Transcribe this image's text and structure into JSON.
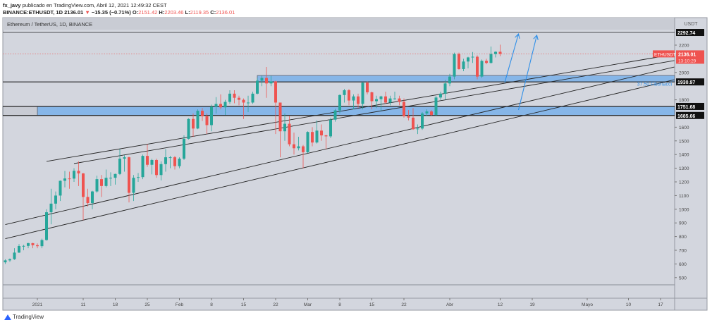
{
  "header": {
    "author": "fx_javy",
    "published": "publicado en TradingView.com, Abril 12, 2021 12:49:32 CEST",
    "symbol": "BINANCE:ETHUSDT, 1D",
    "last": "2136.01",
    "change_arrow": "▼",
    "change": "−15.35 (−0.71%)",
    "o_label": "O:",
    "o": "2151.42",
    "h_label": "H:",
    "h": "2203.46",
    "l_label": "L:",
    "l": "2119.35",
    "c_label": "C:",
    "c": "2136.01"
  },
  "footer": {
    "logo_text": "TradingView"
  },
  "colors": {
    "up": "#26a69a",
    "down": "#ef5350",
    "zone": "#86b6e8",
    "background": "#d3d6de",
    "arrow": "#2f8fe8"
  },
  "chart_data": {
    "type": "candlestick",
    "title": "Ethereum / TetherUS, 1D, BINANCE",
    "currency": "USDT",
    "ylim": [
      420,
      2330
    ],
    "yticks": [
      2200,
      2100,
      2000,
      1900,
      1800,
      1700,
      1600,
      1500,
      1400,
      1300,
      1200,
      1100,
      1000,
      900,
      800,
      700,
      600,
      500
    ],
    "xticks": [
      {
        "label": "2021",
        "date": "2021-01-01"
      },
      {
        "label": "11",
        "date": "2021-01-11"
      },
      {
        "label": "18",
        "date": "2021-01-18"
      },
      {
        "label": "25",
        "date": "2021-01-25"
      },
      {
        "label": "Feb",
        "date": "2021-02-01"
      },
      {
        "label": "8",
        "date": "2021-02-08"
      },
      {
        "label": "15",
        "date": "2021-02-15"
      },
      {
        "label": "22",
        "date": "2021-02-22"
      },
      {
        "label": "Mar",
        "date": "2021-03-01"
      },
      {
        "label": "8",
        "date": "2021-03-08"
      },
      {
        "label": "15",
        "date": "2021-03-15"
      },
      {
        "label": "22",
        "date": "2021-03-22"
      },
      {
        "label": "Abr",
        "date": "2021-04-01"
      },
      {
        "label": "12",
        "date": "2021-04-12"
      },
      {
        "label": "19",
        "date": "2021-04-19"
      },
      {
        "label": "Mayo",
        "date": "2021-05-01"
      },
      {
        "label": "10",
        "date": "2021-05-10"
      },
      {
        "label": "17",
        "date": "2021-05-17"
      }
    ],
    "columns": [
      "date",
      "open",
      "high",
      "low",
      "close"
    ],
    "candles": [
      [
        "2020-12-25",
        612,
        635,
        600,
        626
      ],
      [
        "2020-12-26",
        626,
        640,
        615,
        635
      ],
      [
        "2020-12-27",
        635,
        715,
        630,
        683
      ],
      [
        "2020-12-28",
        683,
        745,
        680,
        731
      ],
      [
        "2020-12-29",
        731,
        740,
        700,
        732
      ],
      [
        "2020-12-30",
        732,
        755,
        715,
        752
      ],
      [
        "2020-12-31",
        752,
        755,
        715,
        737
      ],
      [
        "2021-01-01",
        737,
        750,
        715,
        730
      ],
      [
        "2021-01-02",
        730,
        785,
        715,
        775
      ],
      [
        "2021-01-03",
        775,
        1000,
        770,
        978
      ],
      [
        "2021-01-04",
        978,
        1150,
        890,
        1041
      ],
      [
        "2021-01-05",
        1041,
        1130,
        1000,
        1100
      ],
      [
        "2021-01-06",
        1100,
        1210,
        1060,
        1208
      ],
      [
        "2021-01-07",
        1208,
        1280,
        1160,
        1225
      ],
      [
        "2021-01-08",
        1225,
        1275,
        1150,
        1224
      ],
      [
        "2021-01-09",
        1224,
        1300,
        1200,
        1281
      ],
      [
        "2021-01-10",
        1281,
        1350,
        1170,
        1262
      ],
      [
        "2021-01-11",
        1262,
        1265,
        920,
        1090
      ],
      [
        "2021-01-12",
        1090,
        1150,
        1020,
        1045
      ],
      [
        "2021-01-13",
        1045,
        1135,
        1000,
        1130
      ],
      [
        "2021-01-14",
        1130,
        1245,
        1120,
        1220
      ],
      [
        "2021-01-15",
        1220,
        1250,
        1090,
        1170
      ],
      [
        "2021-01-16",
        1170,
        1290,
        1160,
        1230
      ],
      [
        "2021-01-17",
        1230,
        1270,
        1170,
        1230
      ],
      [
        "2021-01-18",
        1230,
        1260,
        1180,
        1258
      ],
      [
        "2021-01-19",
        1258,
        1440,
        1250,
        1370
      ],
      [
        "2021-01-20",
        1370,
        1395,
        1275,
        1380
      ],
      [
        "2021-01-21",
        1380,
        1385,
        1050,
        1120
      ],
      [
        "2021-01-22",
        1120,
        1250,
        1060,
        1230
      ],
      [
        "2021-01-23",
        1230,
        1265,
        1200,
        1235
      ],
      [
        "2021-01-24",
        1235,
        1400,
        1220,
        1390
      ],
      [
        "2021-01-25",
        1390,
        1475,
        1310,
        1325
      ],
      [
        "2021-01-26",
        1325,
        1370,
        1255,
        1360
      ],
      [
        "2021-01-27",
        1360,
        1370,
        1230,
        1250
      ],
      [
        "2021-01-28",
        1250,
        1350,
        1210,
        1330
      ],
      [
        "2021-01-29",
        1330,
        1440,
        1275,
        1380
      ],
      [
        "2021-01-30",
        1380,
        1390,
        1300,
        1380
      ],
      [
        "2021-01-31",
        1380,
        1390,
        1290,
        1315
      ],
      [
        "2021-02-01",
        1315,
        1380,
        1300,
        1370
      ],
      [
        "2021-02-02",
        1370,
        1540,
        1360,
        1515
      ],
      [
        "2021-02-03",
        1515,
        1665,
        1510,
        1660
      ],
      [
        "2021-02-04",
        1660,
        1700,
        1530,
        1590
      ],
      [
        "2021-02-05",
        1590,
        1730,
        1585,
        1720
      ],
      [
        "2021-02-06",
        1720,
        1740,
        1645,
        1680
      ],
      [
        "2021-02-07",
        1680,
        1700,
        1550,
        1615
      ],
      [
        "2021-02-08",
        1615,
        1765,
        1570,
        1750
      ],
      [
        "2021-02-09",
        1750,
        1820,
        1700,
        1770
      ],
      [
        "2021-02-10",
        1770,
        1840,
        1730,
        1745
      ],
      [
        "2021-02-11",
        1745,
        1800,
        1690,
        1785
      ],
      [
        "2021-02-12",
        1785,
        1870,
        1770,
        1845
      ],
      [
        "2021-02-13",
        1845,
        1870,
        1775,
        1815
      ],
      [
        "2021-02-14",
        1815,
        1830,
        1760,
        1800
      ],
      [
        "2021-02-15",
        1800,
        1810,
        1660,
        1780
      ],
      [
        "2021-02-16",
        1780,
        1830,
        1710,
        1780
      ],
      [
        "2021-02-17",
        1780,
        1860,
        1770,
        1845
      ],
      [
        "2021-02-18",
        1845,
        1960,
        1840,
        1940
      ],
      [
        "2021-02-19",
        1940,
        1975,
        1900,
        1960
      ],
      [
        "2021-02-20",
        1960,
        2040,
        1815,
        1920
      ],
      [
        "2021-02-21",
        1920,
        1975,
        1900,
        1935
      ],
      [
        "2021-02-22",
        1935,
        1940,
        1550,
        1780
      ],
      [
        "2021-02-23",
        1780,
        1780,
        1380,
        1570
      ],
      [
        "2021-02-24",
        1570,
        1700,
        1500,
        1625
      ],
      [
        "2021-02-25",
        1625,
        1680,
        1460,
        1475
      ],
      [
        "2021-02-26",
        1475,
        1560,
        1400,
        1446
      ],
      [
        "2021-02-27",
        1446,
        1530,
        1430,
        1460
      ],
      [
        "2021-02-28",
        1460,
        1470,
        1300,
        1417
      ],
      [
        "2021-03-01",
        1417,
        1570,
        1410,
        1565
      ],
      [
        "2021-03-02",
        1565,
        1600,
        1460,
        1488
      ],
      [
        "2021-03-03",
        1488,
        1650,
        1480,
        1575
      ],
      [
        "2021-03-04",
        1575,
        1620,
        1500,
        1540
      ],
      [
        "2021-03-05",
        1540,
        1545,
        1440,
        1533
      ],
      [
        "2021-03-06",
        1533,
        1670,
        1520,
        1655
      ],
      [
        "2021-03-07",
        1655,
        1735,
        1640,
        1723
      ],
      [
        "2021-03-08",
        1723,
        1840,
        1700,
        1835
      ],
      [
        "2021-03-09",
        1835,
        1880,
        1780,
        1870
      ],
      [
        "2021-03-10",
        1870,
        1880,
        1760,
        1795
      ],
      [
        "2021-03-11",
        1795,
        1840,
        1730,
        1825
      ],
      [
        "2021-03-12",
        1825,
        1845,
        1740,
        1770
      ],
      [
        "2021-03-13",
        1770,
        1930,
        1730,
        1925
      ],
      [
        "2021-03-14",
        1925,
        1935,
        1840,
        1855
      ],
      [
        "2021-03-15",
        1855,
        1860,
        1730,
        1790
      ],
      [
        "2021-03-16",
        1790,
        1830,
        1740,
        1805
      ],
      [
        "2021-03-17",
        1805,
        1830,
        1720,
        1825
      ],
      [
        "2021-03-18",
        1825,
        1860,
        1770,
        1780
      ],
      [
        "2021-03-19",
        1780,
        1830,
        1760,
        1810
      ],
      [
        "2021-03-20",
        1810,
        1860,
        1800,
        1810
      ],
      [
        "2021-03-21",
        1810,
        1830,
        1760,
        1785
      ],
      [
        "2021-03-22",
        1785,
        1810,
        1670,
        1680
      ],
      [
        "2021-03-23",
        1680,
        1725,
        1650,
        1670
      ],
      [
        "2021-03-24",
        1670,
        1740,
        1580,
        1585
      ],
      [
        "2021-03-25",
        1585,
        1620,
        1550,
        1590
      ],
      [
        "2021-03-26",
        1590,
        1710,
        1580,
        1700
      ],
      [
        "2021-03-27",
        1700,
        1730,
        1680,
        1715
      ],
      [
        "2021-03-28",
        1715,
        1725,
        1680,
        1690
      ],
      [
        "2021-03-29",
        1690,
        1830,
        1680,
        1817
      ],
      [
        "2021-03-30",
        1817,
        1860,
        1800,
        1845
      ],
      [
        "2021-03-31",
        1845,
        1945,
        1800,
        1920
      ],
      [
        "2021-04-01",
        1920,
        1990,
        1900,
        1970
      ],
      [
        "2021-04-02",
        1970,
        2145,
        1950,
        2135
      ],
      [
        "2021-04-03",
        2135,
        2145,
        2020,
        2025
      ],
      [
        "2021-04-04",
        2025,
        2100,
        2010,
        2080
      ],
      [
        "2021-04-05",
        2080,
        2115,
        2030,
        2110
      ],
      [
        "2021-04-06",
        2110,
        2150,
        2070,
        2115
      ],
      [
        "2021-04-07",
        2115,
        2125,
        1950,
        1970
      ],
      [
        "2021-04-08",
        1970,
        2095,
        1960,
        2085
      ],
      [
        "2021-04-09",
        2085,
        2100,
        2060,
        2070
      ],
      [
        "2021-04-10",
        2070,
        2190,
        2065,
        2135
      ],
      [
        "2021-04-11",
        2135,
        2155,
        2110,
        2151
      ],
      [
        "2021-04-12",
        2151.42,
        2203.46,
        2119.35,
        2136.01
      ]
    ],
    "price_label": {
      "symbol": "ETHUSDT",
      "price": "2136.01",
      "countdown": "13:10:29",
      "value": 2136.01
    },
    "levels": [
      {
        "label": "2292.74",
        "value": 2292.74
      },
      {
        "label": "1930.97",
        "value": 1930.97
      },
      {
        "label": "1751.68",
        "value": 1751.68
      },
      {
        "label": "1685.66",
        "value": 1685.66
      }
    ],
    "zones": [
      {
        "from": "2021-02-18",
        "top": 1978,
        "bottom": 1930.97
      },
      {
        "from": "2021-01-01",
        "top": 1751.68,
        "bottom": 1685.66
      }
    ],
    "fib_label": "37.50 Fibonacci",
    "fib_value": 1918,
    "trendlines": [
      {
        "start": [
          "2021-01-03",
          1350
        ],
        "end": [
          "2021-05-20",
          2133
        ]
      },
      {
        "start": [
          "2021-01-09",
          1334
        ],
        "end": [
          "2021-05-20",
          2087
        ]
      },
      {
        "start": [
          "2020-12-25",
          888
        ],
        "end": [
          "2021-05-20",
          2040
        ]
      },
      {
        "start": [
          "2020-12-25",
          785
        ],
        "end": [
          "2021-05-20",
          1947
        ]
      }
    ],
    "arrows": [
      {
        "start": [
          "2021-04-13",
          1927
        ],
        "end": [
          "2021-04-16",
          2282
        ]
      },
      {
        "start": [
          "2021-04-16",
          1726
        ],
        "end": [
          "2021-04-20",
          2272
        ]
      }
    ]
  }
}
